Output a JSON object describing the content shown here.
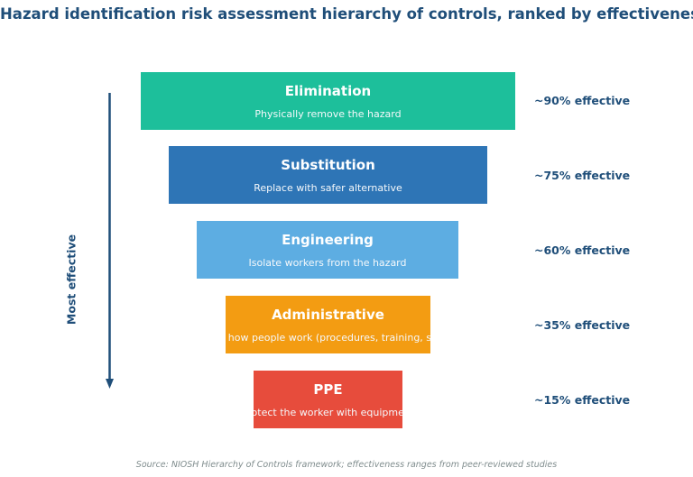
{
  "title": "Hazard identification risk assessment hierarchy of controls, ranked by effectiveness",
  "axis_label": "Most effective",
  "levels": [
    {
      "name": "Elimination",
      "description": "Physically remove the hazard",
      "effectiveness": "~90% effective",
      "color": "#1dbf9b"
    },
    {
      "name": "Substitution",
      "description": "Replace with safer alternative",
      "effectiveness": "~75% effective",
      "color": "#2e75b6"
    },
    {
      "name": "Engineering",
      "description": "Isolate workers from the hazard",
      "effectiveness": "~60% effective",
      "color": "#5dade2"
    },
    {
      "name": "Administrative",
      "description": "Change how people work (procedures, training, signage)",
      "effectiveness": "~35% effective",
      "color": "#f39c12"
    },
    {
      "name": "PPE",
      "description": "Protect the worker with equipment",
      "effectiveness": "~15% effective",
      "color": "#e74c3c"
    }
  ],
  "source": "Source: NIOSH Hierarchy of Controls framework; effectiveness ranges from peer-reviewed studies"
}
